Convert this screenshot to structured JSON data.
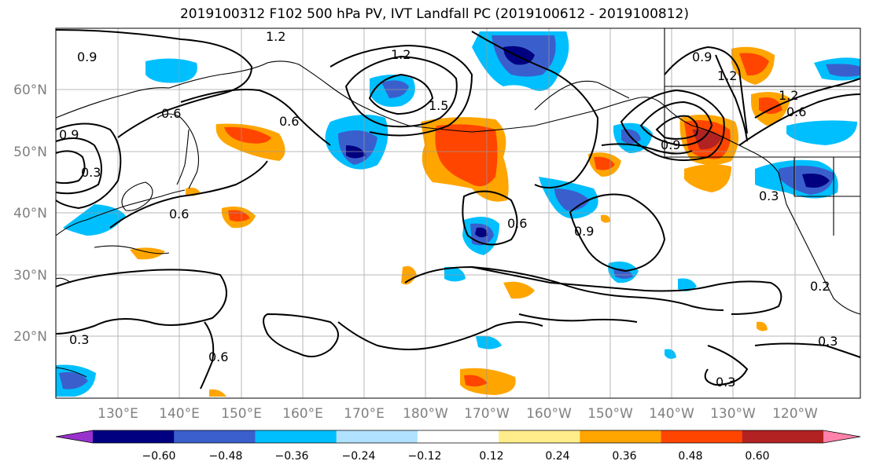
{
  "title": "2019100312 F102 500 hPa PV, IVT Landfall PC (2019100612 - 2019100812)",
  "map": {
    "lon_labels": [
      "130°E",
      "140°E",
      "150°E",
      "160°E",
      "170°E",
      "180°W",
      "170°W",
      "160°W",
      "150°W",
      "140°W",
      "130°W",
      "120°W"
    ],
    "lat_labels": [
      "60°N",
      "50°N",
      "40°N",
      "30°N",
      "20°N"
    ],
    "gridlines": true
  },
  "colorbar": {
    "ticks": [
      "−0.60",
      "−0.48",
      "−0.36",
      "−0.24",
      "−0.12",
      "0.12",
      "0.24",
      "0.36",
      "0.48",
      "0.60"
    ],
    "colors": [
      "#9932cc",
      "#000080",
      "#3a5fcd",
      "#00bfff",
      "#b0e2ff",
      "#ffffff",
      "#ffec8b",
      "#ffa500",
      "#ff4500",
      "#b22222",
      "#ff82ab"
    ],
    "extend": "both"
  },
  "contour_labels": [
    "1.2",
    "0.9",
    "1.2",
    "1.5",
    "0.6",
    "0.6",
    "0.9",
    "0.3",
    "0.6",
    "0.6",
    "0.9",
    "0.9",
    "1.2",
    "1.2",
    "0.6",
    "0.9",
    "0.3",
    "0.2",
    "0.3",
    "0.3",
    "0.6",
    "0.3"
  ],
  "colors": {
    "positive_main": "#ff4500",
    "negative_main": "#3a5fcd",
    "grid": "#999999"
  }
}
